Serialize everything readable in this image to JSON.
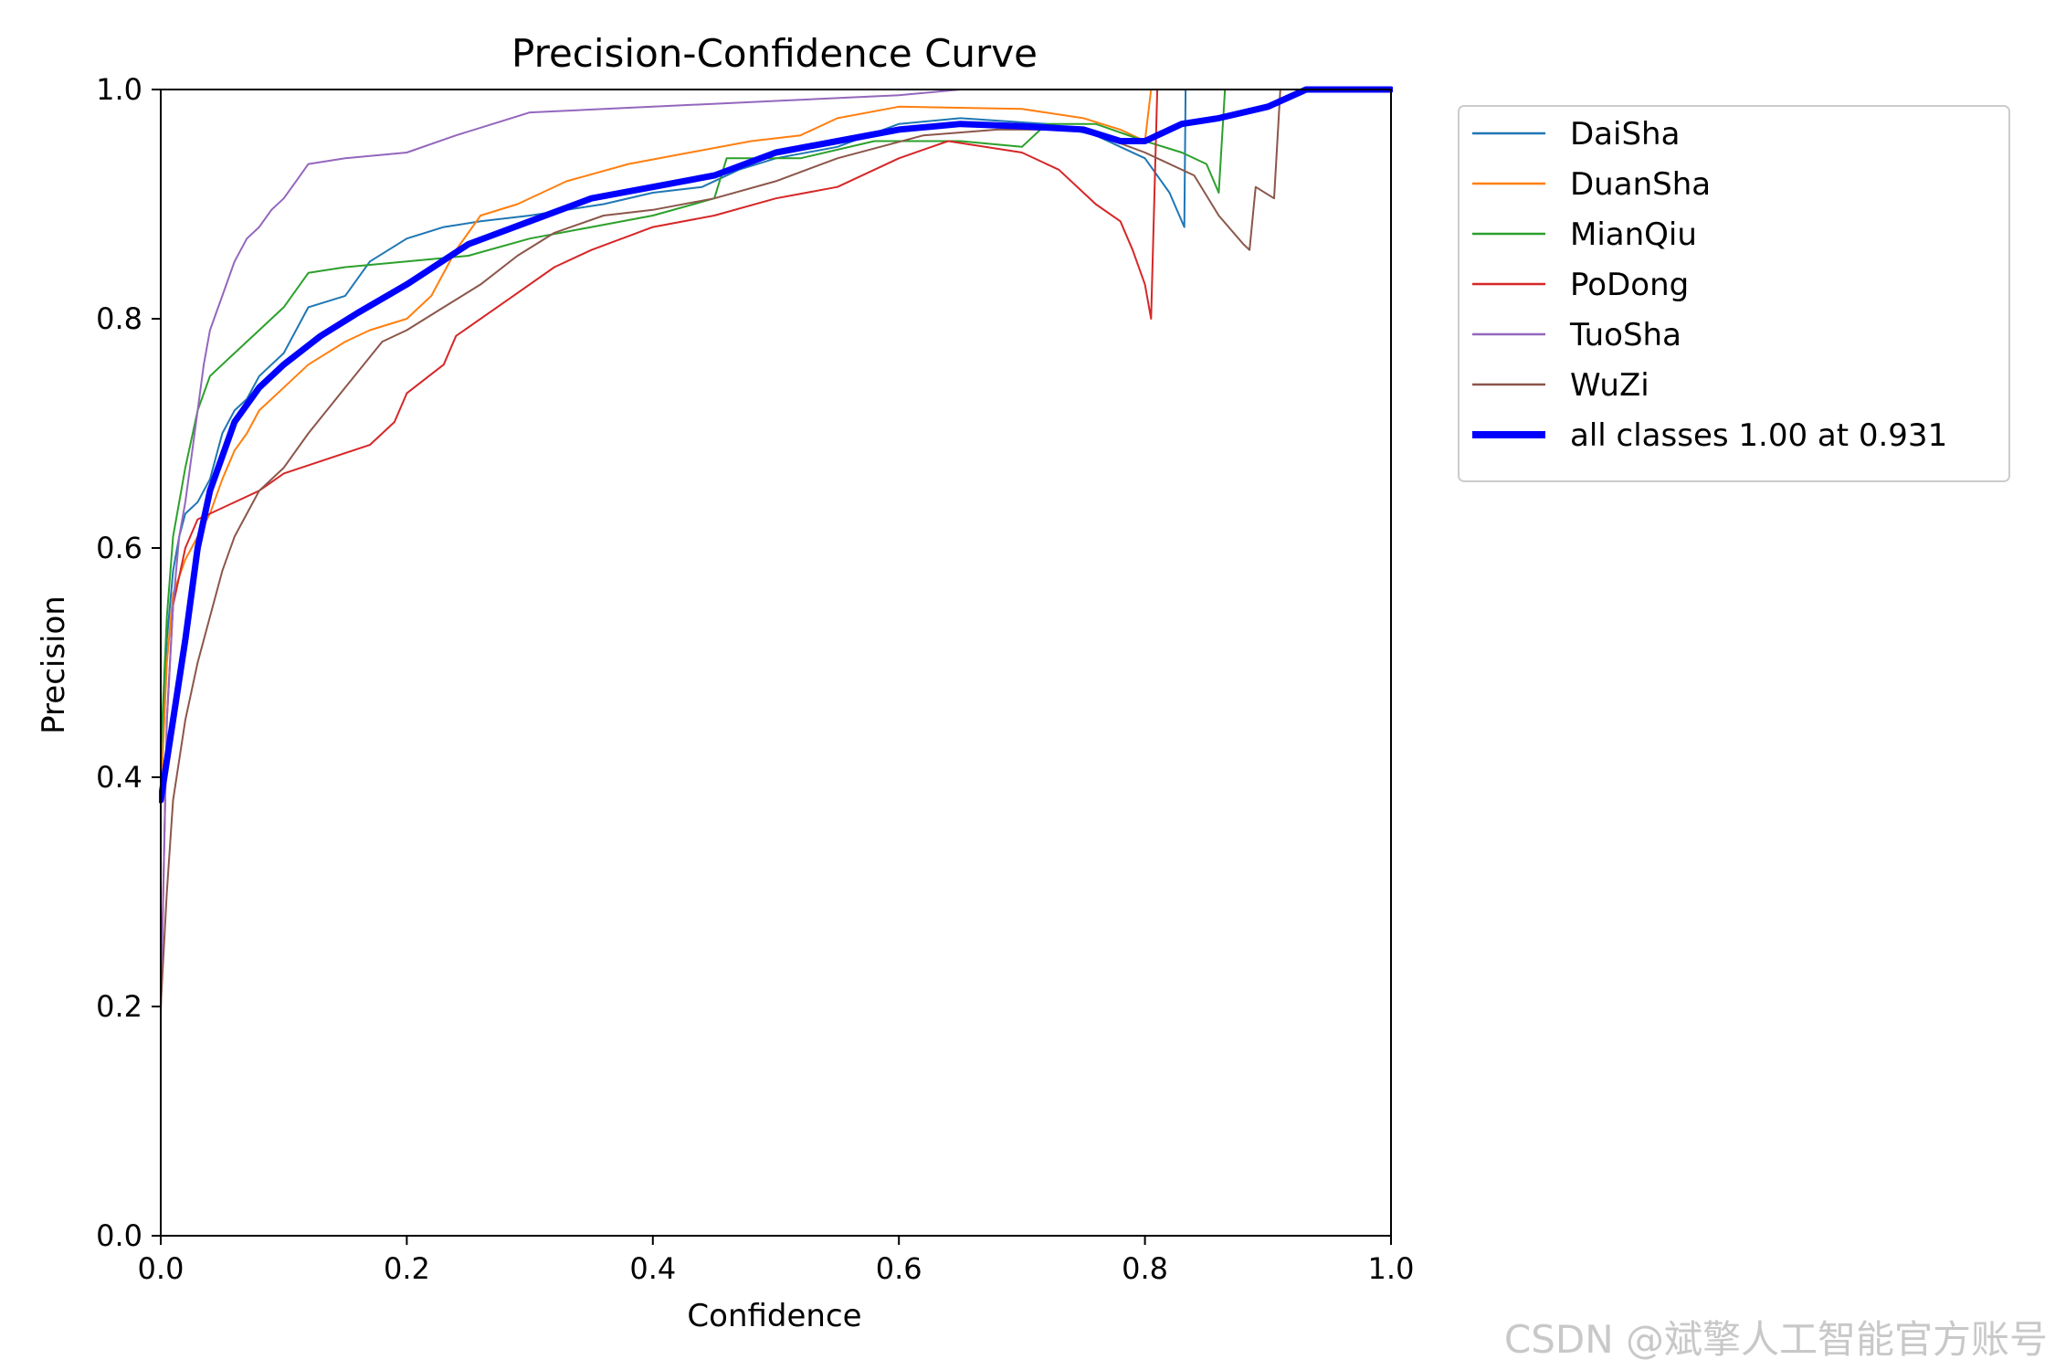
{
  "chart_data": {
    "type": "line",
    "title": "Precision-Confidence Curve",
    "xlabel": "Confidence",
    "ylabel": "Precision",
    "xlim": [
      0,
      1
    ],
    "ylim": [
      0,
      1
    ],
    "xticks": [
      "0.0",
      "0.2",
      "0.4",
      "0.6",
      "0.8",
      "1.0"
    ],
    "yticks": [
      "0.0",
      "0.2",
      "0.4",
      "0.6",
      "0.8",
      "1.0"
    ],
    "grid": false,
    "legend_position": "outside-upper-right",
    "series": [
      {
        "name": "DaiSha",
        "color": "#1f77b4",
        "width": 2,
        "points": [
          [
            0.0,
            0.4
          ],
          [
            0.005,
            0.52
          ],
          [
            0.01,
            0.58
          ],
          [
            0.015,
            0.61
          ],
          [
            0.02,
            0.63
          ],
          [
            0.03,
            0.64
          ],
          [
            0.04,
            0.66
          ],
          [
            0.05,
            0.7
          ],
          [
            0.06,
            0.72
          ],
          [
            0.07,
            0.73
          ],
          [
            0.08,
            0.75
          ],
          [
            0.1,
            0.77
          ],
          [
            0.12,
            0.81
          ],
          [
            0.15,
            0.82
          ],
          [
            0.17,
            0.85
          ],
          [
            0.2,
            0.87
          ],
          [
            0.23,
            0.88
          ],
          [
            0.26,
            0.885
          ],
          [
            0.3,
            0.89
          ],
          [
            0.33,
            0.895
          ],
          [
            0.36,
            0.9
          ],
          [
            0.4,
            0.91
          ],
          [
            0.44,
            0.915
          ],
          [
            0.47,
            0.93
          ],
          [
            0.5,
            0.94
          ],
          [
            0.55,
            0.95
          ],
          [
            0.6,
            0.97
          ],
          [
            0.65,
            0.975
          ],
          [
            0.72,
            0.97
          ],
          [
            0.74,
            0.965
          ],
          [
            0.76,
            0.96
          ],
          [
            0.78,
            0.95
          ],
          [
            0.8,
            0.94
          ],
          [
            0.82,
            0.91
          ],
          [
            0.832,
            0.88
          ],
          [
            0.833,
            1.0
          ],
          [
            1.0,
            1.0
          ]
        ]
      },
      {
        "name": "DuanSha",
        "color": "#ff7f0e",
        "width": 2,
        "points": [
          [
            0.0,
            0.38
          ],
          [
            0.005,
            0.5
          ],
          [
            0.01,
            0.56
          ],
          [
            0.02,
            0.59
          ],
          [
            0.03,
            0.61
          ],
          [
            0.04,
            0.63
          ],
          [
            0.05,
            0.66
          ],
          [
            0.06,
            0.685
          ],
          [
            0.07,
            0.7
          ],
          [
            0.08,
            0.72
          ],
          [
            0.1,
            0.74
          ],
          [
            0.12,
            0.76
          ],
          [
            0.15,
            0.78
          ],
          [
            0.17,
            0.79
          ],
          [
            0.2,
            0.8
          ],
          [
            0.22,
            0.82
          ],
          [
            0.24,
            0.86
          ],
          [
            0.26,
            0.89
          ],
          [
            0.29,
            0.9
          ],
          [
            0.33,
            0.92
          ],
          [
            0.38,
            0.935
          ],
          [
            0.43,
            0.945
          ],
          [
            0.48,
            0.955
          ],
          [
            0.52,
            0.96
          ],
          [
            0.55,
            0.975
          ],
          [
            0.6,
            0.985
          ],
          [
            0.7,
            0.983
          ],
          [
            0.75,
            0.975
          ],
          [
            0.78,
            0.965
          ],
          [
            0.8,
            0.955
          ],
          [
            0.805,
            1.0
          ],
          [
            1.0,
            1.0
          ]
        ]
      },
      {
        "name": "MianQiu",
        "color": "#2ca02c",
        "width": 2,
        "points": [
          [
            0.0,
            0.42
          ],
          [
            0.005,
            0.54
          ],
          [
            0.01,
            0.61
          ],
          [
            0.02,
            0.67
          ],
          [
            0.03,
            0.72
          ],
          [
            0.04,
            0.75
          ],
          [
            0.06,
            0.77
          ],
          [
            0.08,
            0.79
          ],
          [
            0.1,
            0.81
          ],
          [
            0.12,
            0.84
          ],
          [
            0.15,
            0.845
          ],
          [
            0.2,
            0.85
          ],
          [
            0.25,
            0.855
          ],
          [
            0.3,
            0.87
          ],
          [
            0.35,
            0.88
          ],
          [
            0.4,
            0.89
          ],
          [
            0.45,
            0.905
          ],
          [
            0.46,
            0.94
          ],
          [
            0.52,
            0.94
          ],
          [
            0.58,
            0.955
          ],
          [
            0.65,
            0.955
          ],
          [
            0.7,
            0.95
          ],
          [
            0.72,
            0.97
          ],
          [
            0.76,
            0.97
          ],
          [
            0.8,
            0.955
          ],
          [
            0.83,
            0.945
          ],
          [
            0.85,
            0.935
          ],
          [
            0.86,
            0.91
          ],
          [
            0.865,
            1.0
          ],
          [
            1.0,
            1.0
          ]
        ]
      },
      {
        "name": "PoDong",
        "color": "#d62728",
        "width": 2,
        "points": [
          [
            0.0,
            0.2
          ],
          [
            0.005,
            0.45
          ],
          [
            0.01,
            0.55
          ],
          [
            0.02,
            0.6
          ],
          [
            0.03,
            0.625
          ],
          [
            0.05,
            0.635
          ],
          [
            0.08,
            0.65
          ],
          [
            0.1,
            0.665
          ],
          [
            0.17,
            0.69
          ],
          [
            0.19,
            0.71
          ],
          [
            0.2,
            0.735
          ],
          [
            0.23,
            0.76
          ],
          [
            0.24,
            0.785
          ],
          [
            0.28,
            0.815
          ],
          [
            0.32,
            0.845
          ],
          [
            0.35,
            0.86
          ],
          [
            0.4,
            0.88
          ],
          [
            0.45,
            0.89
          ],
          [
            0.5,
            0.905
          ],
          [
            0.55,
            0.915
          ],
          [
            0.6,
            0.94
          ],
          [
            0.64,
            0.955
          ],
          [
            0.7,
            0.945
          ],
          [
            0.73,
            0.93
          ],
          [
            0.75,
            0.91
          ],
          [
            0.76,
            0.9
          ],
          [
            0.78,
            0.885
          ],
          [
            0.79,
            0.86
          ],
          [
            0.8,
            0.83
          ],
          [
            0.805,
            0.8
          ],
          [
            0.81,
            1.0
          ],
          [
            1.0,
            1.0
          ]
        ]
      },
      {
        "name": "TuoSha",
        "color": "#9467bd",
        "width": 2,
        "points": [
          [
            0.0,
            0.19
          ],
          [
            0.005,
            0.45
          ],
          [
            0.01,
            0.55
          ],
          [
            0.015,
            0.61
          ],
          [
            0.02,
            0.64
          ],
          [
            0.025,
            0.68
          ],
          [
            0.03,
            0.72
          ],
          [
            0.035,
            0.76
          ],
          [
            0.04,
            0.79
          ],
          [
            0.05,
            0.82
          ],
          [
            0.06,
            0.85
          ],
          [
            0.07,
            0.87
          ],
          [
            0.08,
            0.88
          ],
          [
            0.09,
            0.895
          ],
          [
            0.1,
            0.905
          ],
          [
            0.11,
            0.92
          ],
          [
            0.12,
            0.935
          ],
          [
            0.15,
            0.94
          ],
          [
            0.2,
            0.945
          ],
          [
            0.24,
            0.96
          ],
          [
            0.3,
            0.98
          ],
          [
            0.4,
            0.985
          ],
          [
            0.5,
            0.99
          ],
          [
            0.6,
            0.995
          ],
          [
            0.65,
            1.0
          ],
          [
            1.0,
            1.0
          ]
        ]
      },
      {
        "name": "WuZi",
        "color": "#8c564b",
        "width": 2,
        "points": [
          [
            0.0,
            0.2
          ],
          [
            0.005,
            0.3
          ],
          [
            0.01,
            0.38
          ],
          [
            0.02,
            0.45
          ],
          [
            0.03,
            0.5
          ],
          [
            0.04,
            0.54
          ],
          [
            0.05,
            0.58
          ],
          [
            0.06,
            0.61
          ],
          [
            0.07,
            0.63
          ],
          [
            0.08,
            0.65
          ],
          [
            0.1,
            0.67
          ],
          [
            0.12,
            0.7
          ],
          [
            0.15,
            0.74
          ],
          [
            0.18,
            0.78
          ],
          [
            0.2,
            0.79
          ],
          [
            0.23,
            0.81
          ],
          [
            0.26,
            0.83
          ],
          [
            0.29,
            0.855
          ],
          [
            0.32,
            0.875
          ],
          [
            0.36,
            0.89
          ],
          [
            0.4,
            0.895
          ],
          [
            0.45,
            0.905
          ],
          [
            0.5,
            0.92
          ],
          [
            0.55,
            0.94
          ],
          [
            0.62,
            0.96
          ],
          [
            0.68,
            0.965
          ],
          [
            0.75,
            0.965
          ],
          [
            0.8,
            0.945
          ],
          [
            0.84,
            0.925
          ],
          [
            0.86,
            0.89
          ],
          [
            0.88,
            0.865
          ],
          [
            0.885,
            0.86
          ],
          [
            0.89,
            0.915
          ],
          [
            0.905,
            0.905
          ],
          [
            0.91,
            1.0
          ],
          [
            1.0,
            1.0
          ]
        ]
      },
      {
        "name": "all classes 1.00 at 0.931",
        "color": "#0000ff",
        "width": 7,
        "points": [
          [
            0.0,
            0.38
          ],
          [
            0.01,
            0.45
          ],
          [
            0.02,
            0.52
          ],
          [
            0.03,
            0.6
          ],
          [
            0.04,
            0.65
          ],
          [
            0.05,
            0.68
          ],
          [
            0.06,
            0.71
          ],
          [
            0.08,
            0.74
          ],
          [
            0.1,
            0.76
          ],
          [
            0.13,
            0.785
          ],
          [
            0.16,
            0.805
          ],
          [
            0.2,
            0.83
          ],
          [
            0.25,
            0.865
          ],
          [
            0.3,
            0.885
          ],
          [
            0.35,
            0.905
          ],
          [
            0.4,
            0.915
          ],
          [
            0.45,
            0.925
          ],
          [
            0.5,
            0.945
          ],
          [
            0.55,
            0.955
          ],
          [
            0.6,
            0.965
          ],
          [
            0.65,
            0.97
          ],
          [
            0.7,
            0.968
          ],
          [
            0.75,
            0.965
          ],
          [
            0.78,
            0.955
          ],
          [
            0.8,
            0.955
          ],
          [
            0.83,
            0.97
          ],
          [
            0.86,
            0.975
          ],
          [
            0.9,
            0.985
          ],
          [
            0.931,
            1.0
          ],
          [
            1.0,
            1.0
          ]
        ]
      }
    ]
  }
}
